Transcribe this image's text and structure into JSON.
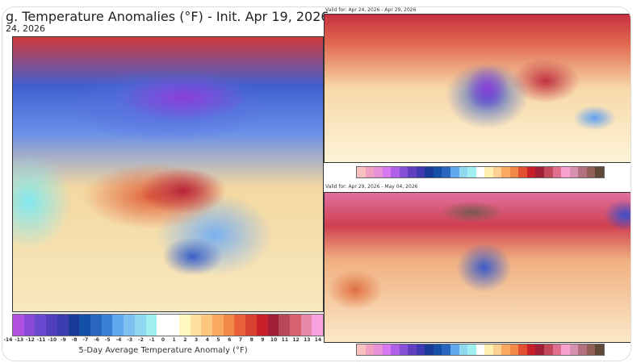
{
  "main": {
    "title": "g. Temperature Anomalies (°F) - Init. Apr 19, 2026",
    "subtitle": "24, 2026",
    "colorbar_ticks": [
      "-14",
      "-13",
      "-12",
      "-11",
      "-10",
      "-9",
      "-8",
      "-7",
      "-6",
      "-5",
      "-4",
      "-3",
      "-2",
      "-1",
      "0",
      "1",
      "2",
      "3",
      "4",
      "5",
      "6",
      "7",
      "8",
      "9",
      "10",
      "11",
      "12",
      "13",
      "14"
    ],
    "colorbar_label": "5-Day Average Temperature Anomaly (°F)",
    "colors": [
      "#b050e0",
      "#8a48d8",
      "#6a48d0",
      "#5040c0",
      "#3a3cb0",
      "#1a3a98",
      "#1450a8",
      "#2a66c0",
      "#3a80d8",
      "#60a8f0",
      "#80c0f0",
      "#90d8f0",
      "#a0f0f0",
      "#ffffff",
      "#ffffff",
      "#fff8c0",
      "#fde0a0",
      "#fcc880",
      "#f8a860",
      "#f08848",
      "#e86038",
      "#d84030",
      "#c82028",
      "#a02038",
      "#b84858",
      "#d86070",
      "#e888a8",
      "#f8a0e0"
    ]
  },
  "top_right": {
    "valid": "Valid for: Apr 24, 2026 - Apr 29, 2026"
  },
  "bottom_right": {
    "valid": "Valid for: Apr 29, 2026 - May 04, 2026"
  },
  "small_colors": [
    "#f8c0c0",
    "#f0a0c0",
    "#e890d8",
    "#d878f0",
    "#b060e8",
    "#8850d8",
    "#6040c0",
    "#4038b0",
    "#1a3a98",
    "#1450a8",
    "#2a66c0",
    "#60a8f0",
    "#90d8f0",
    "#a0f0f0",
    "#ffffff",
    "#fff0b0",
    "#fcd090",
    "#f8a860",
    "#f08848",
    "#e05030",
    "#c82028",
    "#a02038",
    "#c04858",
    "#e07090",
    "#f8a0d0",
    "#d890b0",
    "#b07080",
    "#906058",
    "#604838"
  ]
}
